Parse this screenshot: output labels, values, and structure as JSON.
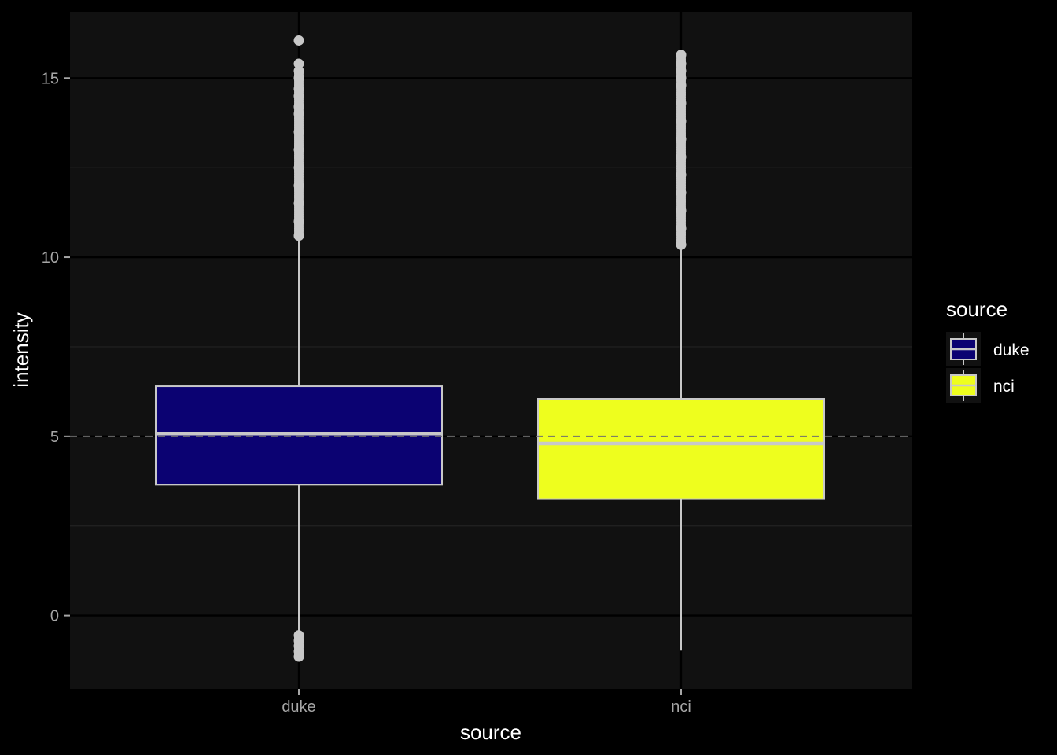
{
  "chart_data": {
    "type": "boxplot",
    "xlabel": "source",
    "ylabel": "intensity",
    "categories": [
      "duke",
      "nci"
    ],
    "ylim": [
      -2.05,
      16.85
    ],
    "yticks": [
      0,
      5,
      10,
      15
    ],
    "reference_line": {
      "y": 5,
      "style": "dashed"
    },
    "grid": true,
    "legend": {
      "title": "source",
      "position": "right"
    },
    "boxes": [
      {
        "name": "duke",
        "color": "#0b0272",
        "whisker_low": -0.5,
        "q1": 3.65,
        "median": 5.08,
        "q3": 6.4,
        "whisker_high": 10.5,
        "outliers_high": [
          10.6,
          11.0,
          11.5,
          12.0,
          12.5,
          13.0,
          13.5,
          14.0,
          14.2,
          14.5,
          14.7,
          15.0,
          15.2,
          15.4,
          16.05
        ],
        "outliers_low": [
          -0.55,
          -0.7,
          -0.85,
          -1.0,
          -1.15
        ]
      },
      {
        "name": "nci",
        "color": "#eefe1e",
        "whisker_low": -0.98,
        "q1": 3.25,
        "median": 4.8,
        "q3": 6.05,
        "whisker_high": 10.3,
        "outliers_high": [
          10.35,
          10.8,
          11.3,
          11.8,
          12.3,
          12.8,
          13.3,
          13.8,
          14.3,
          14.8,
          15.0,
          15.2,
          15.4,
          15.65
        ],
        "outliers_low": []
      }
    ],
    "colors": {
      "panel": "#111111",
      "grid_major": "#000000",
      "grid_minor": "#222222",
      "box_outline": "#c8c8c8",
      "outlier": "#c8c8c8",
      "reference_line": "#6e6e6e"
    }
  }
}
